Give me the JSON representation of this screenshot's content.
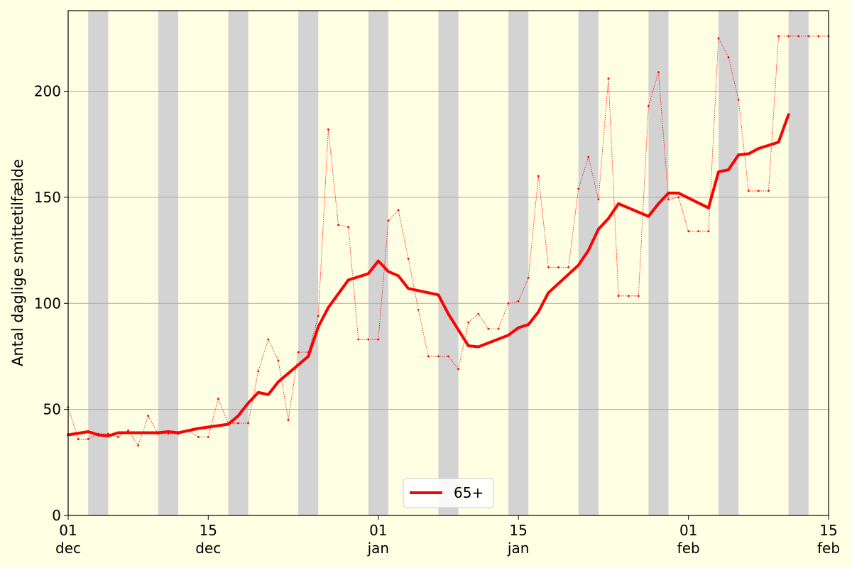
{
  "chart_data": {
    "type": "line",
    "title": "",
    "xlabel": "",
    "ylabel": "Antal daglige smittetilfælde",
    "x_range": [
      "2020-12-01",
      "2021-02-15"
    ],
    "ylim": [
      0,
      238
    ],
    "y_ticks": [
      0,
      50,
      100,
      150,
      200
    ],
    "x_ticks": [
      {
        "date": "2020-12-01",
        "day": "01",
        "month": "dec"
      },
      {
        "date": "2020-12-15",
        "day": "15",
        "month": "dec"
      },
      {
        "date": "2021-01-01",
        "day": "01",
        "month": "jan"
      },
      {
        "date": "2021-01-15",
        "day": "15",
        "month": "jan"
      },
      {
        "date": "2021-02-01",
        "day": "01",
        "month": "feb"
      },
      {
        "date": "2021-02-15",
        "day": "15",
        "month": "feb"
      }
    ],
    "grid": "horizontal",
    "legend_position": "bottom-center",
    "weekend_shading_color": "#d3d3d3",
    "weekend_bands": [
      [
        "2020-12-03",
        "2020-12-05"
      ],
      [
        "2020-12-10",
        "2020-12-12"
      ],
      [
        "2020-12-17",
        "2020-12-19"
      ],
      [
        "2020-12-24",
        "2020-12-26"
      ],
      [
        "2020-12-31",
        "2021-01-02"
      ],
      [
        "2021-01-07",
        "2021-01-09"
      ],
      [
        "2021-01-14",
        "2021-01-16"
      ],
      [
        "2021-01-21",
        "2021-01-23"
      ],
      [
        "2021-01-28",
        "2021-01-30"
      ],
      [
        "2021-02-04",
        "2021-02-06"
      ],
      [
        "2021-02-11",
        "2021-02-13"
      ]
    ],
    "series": [
      {
        "name": "65+",
        "color": "#ff0000",
        "style": "smoothed",
        "x": [
          "2020-12-01",
          "2020-12-03",
          "2020-12-04",
          "2020-12-05",
          "2020-12-06",
          "2020-12-07",
          "2020-12-10",
          "2020-12-11",
          "2020-12-12",
          "2020-12-13",
          "2020-12-14",
          "2020-12-17",
          "2020-12-18",
          "2020-12-19",
          "2020-12-20",
          "2020-12-21",
          "2020-12-22",
          "2020-12-24",
          "2020-12-25",
          "2020-12-26",
          "2020-12-27",
          "2020-12-29",
          "2020-12-31",
          "2021-01-01",
          "2021-01-02",
          "2021-01-03",
          "2021-01-04",
          "2021-01-07",
          "2021-01-08",
          "2021-01-10",
          "2021-01-11",
          "2021-01-14",
          "2021-01-15",
          "2021-01-16",
          "2021-01-17",
          "2021-01-18",
          "2021-01-21",
          "2021-01-22",
          "2021-01-23",
          "2021-01-24",
          "2021-01-25",
          "2021-01-28",
          "2021-01-29",
          "2021-01-30",
          "2021-01-31",
          "2021-02-03",
          "2021-02-04",
          "2021-02-05",
          "2021-02-06",
          "2021-02-07",
          "2021-02-08",
          "2021-02-10",
          "2021-02-11"
        ],
        "values": [
          38,
          39.5,
          38,
          37.5,
          39,
          39,
          39,
          39.5,
          39,
          40,
          41,
          43,
          47,
          53,
          58,
          57,
          63,
          71,
          75,
          89,
          98,
          111,
          114,
          120,
          115,
          113,
          107,
          104,
          95,
          80,
          79.5,
          85,
          88.5,
          90,
          96,
          105,
          118,
          125,
          135,
          140,
          147,
          141,
          147,
          152,
          152,
          145,
          162,
          163,
          170,
          170.5,
          173,
          176,
          189
        ]
      },
      {
        "name": "",
        "color": "#ff0000",
        "style": "daily-dotted",
        "x": [
          "2020-12-01",
          "2020-12-02",
          "2020-12-03",
          "2020-12-04",
          "2020-12-05",
          "2020-12-06",
          "2020-12-07",
          "2020-12-08",
          "2020-12-09",
          "2020-12-10",
          "2020-12-11",
          "2020-12-12",
          "2020-12-13",
          "2020-12-14",
          "2020-12-15",
          "2020-12-16",
          "2020-12-17",
          "2020-12-18",
          "2020-12-19",
          "2020-12-20",
          "2020-12-21",
          "2020-12-22",
          "2020-12-23",
          "2020-12-24",
          "2020-12-25",
          "2020-12-26",
          "2020-12-27",
          "2020-12-28",
          "2020-12-29",
          "2020-12-30",
          "2020-12-31",
          "2021-01-01",
          "2021-01-02",
          "2021-01-03",
          "2021-01-04",
          "2021-01-05",
          "2021-01-06",
          "2021-01-07",
          "2021-01-08",
          "2021-01-09",
          "2021-01-10",
          "2021-01-11",
          "2021-01-12",
          "2021-01-13",
          "2021-01-14",
          "2021-01-15",
          "2021-01-16",
          "2021-01-17",
          "2021-01-18",
          "2021-01-19",
          "2021-01-20",
          "2021-01-21",
          "2021-01-22",
          "2021-01-23",
          "2021-01-24",
          "2021-01-25",
          "2021-01-26",
          "2021-01-27",
          "2021-01-28",
          "2021-01-29",
          "2021-01-30",
          "2021-01-31",
          "2021-02-01",
          "2021-02-02",
          "2021-02-03",
          "2021-02-04",
          "2021-02-05",
          "2021-02-06",
          "2021-02-07",
          "2021-02-08",
          "2021-02-09",
          "2021-02-10",
          "2021-02-11",
          "2021-02-12",
          "2021-02-13",
          "2021-02-14",
          "2021-02-15"
        ],
        "values": [
          51,
          36,
          36,
          38.5,
          38.5,
          37,
          40,
          33,
          47,
          38.5,
          38.5,
          38.5,
          40,
          37,
          37,
          55,
          43.5,
          43.5,
          43.5,
          68,
          83,
          73,
          45,
          77,
          77,
          94,
          182,
          137,
          136,
          83,
          83,
          83,
          139,
          144,
          121,
          97,
          75,
          75,
          75,
          69,
          91,
          95,
          88,
          88,
          100,
          101,
          112,
          160,
          117,
          117,
          117,
          154,
          169,
          149,
          206,
          103.5,
          103.5,
          103.5,
          193,
          209,
          149,
          150,
          134,
          134,
          134,
          225,
          216,
          196,
          153,
          153,
          153,
          226,
          226,
          226,
          226,
          226,
          226
        ]
      }
    ]
  }
}
